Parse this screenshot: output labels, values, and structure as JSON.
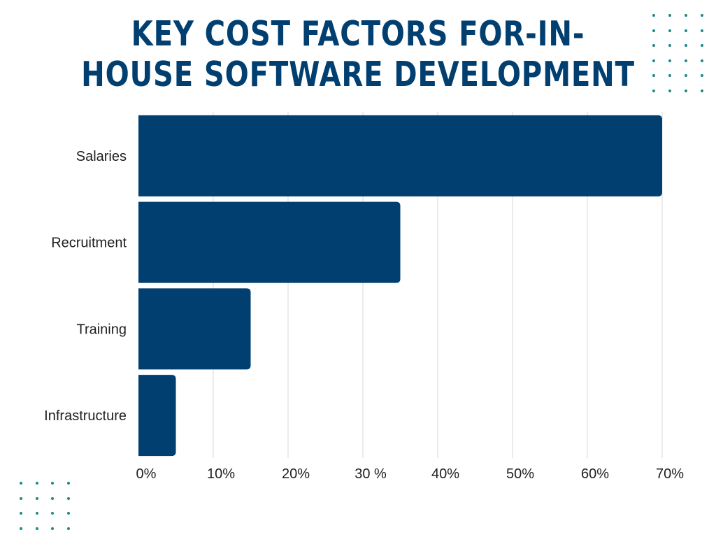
{
  "title": {
    "line1": "KEY COST FACTORS FOR-IN-",
    "line2": "HOUSE SOFTWARE DEVELOPMENT"
  },
  "chart_data": {
    "type": "bar",
    "orientation": "horizontal",
    "title": "KEY COST FACTORS FOR-IN- HOUSE SOFTWARE DEVELOPMENT",
    "categories": [
      "Salaries",
      "Recruitment",
      "Training",
      "Infrastructure"
    ],
    "values": [
      70,
      35,
      15,
      5
    ],
    "xlim": [
      0,
      70
    ],
    "ticks": [
      {
        "value": 0,
        "label": "0%"
      },
      {
        "value": 10,
        "label": "10%"
      },
      {
        "value": 20,
        "label": "20%"
      },
      {
        "value": 30,
        "label": "30 %"
      },
      {
        "value": 40,
        "label": "40%"
      },
      {
        "value": 50,
        "label": "50%"
      },
      {
        "value": 60,
        "label": "60%"
      },
      {
        "value": 70,
        "label": "70%"
      }
    ],
    "grid": true,
    "legend": "none"
  },
  "colors": {
    "bar": "#003f70",
    "title": "#003f70",
    "text": "#1f1f1f",
    "grid": "#dedede",
    "dots": "#1e8a8a"
  }
}
